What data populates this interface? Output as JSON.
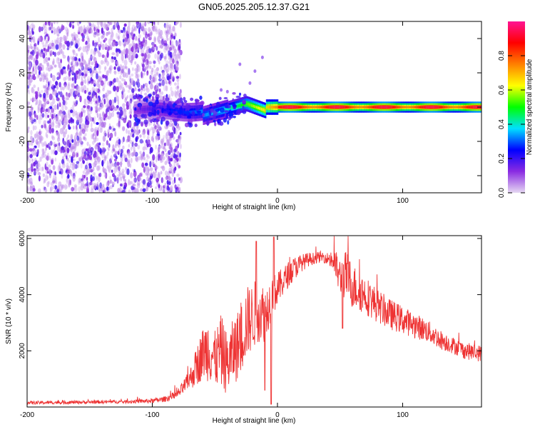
{
  "title": "GN05.2025.205.12.37.G21",
  "chart_data": [
    {
      "type": "heatmap",
      "name": "spectrogram",
      "xlabel": "Height of straight line (km)",
      "ylabel": "Frequency (Hz)",
      "xlim": [
        -200,
        163
      ],
      "ylim": [
        -50,
        50
      ],
      "x_ticks": [
        "-200",
        "-100",
        "0",
        "100"
      ],
      "y_ticks": [
        "-40",
        "-20",
        "0",
        "20",
        "40"
      ],
      "colorbar": {
        "label": "Normalized spectral amplitude",
        "range": [
          0.0,
          1.0
        ],
        "ticks": [
          "0.0",
          "0.2",
          "0.4",
          "0.6",
          "0.8"
        ],
        "colors": [
          "#e6d8f2",
          "#8a2be2",
          "#0000ff",
          "#00e0ff",
          "#00ff00",
          "#ffff00",
          "#ff8000",
          "#ff0000",
          "#ff1493"
        ]
      },
      "features": {
        "noise_region_x": [
          -200,
          -77
        ],
        "signal_band_center_hz": 0,
        "signal_onset_x": -115,
        "peak_amplitude_x_range": [
          0,
          163
        ]
      }
    },
    {
      "type": "line",
      "name": "snr",
      "xlabel": "Height of straight line (km)",
      "ylabel": "SNR (10 * v/v)",
      "xlim": [
        -200,
        163
      ],
      "ylim": [
        0,
        6100
      ],
      "x_ticks": [
        "-200",
        "-100",
        "0",
        "100"
      ],
      "y_ticks": [
        "2000",
        "4000",
        "6000"
      ],
      "series": [
        {
          "color": "#ee3333",
          "x": [
            -200,
            -180,
            -160,
            -140,
            -120,
            -100,
            -90,
            -80,
            -75,
            -70,
            -65,
            -60,
            -55,
            -50,
            -45,
            -40,
            -35,
            -30,
            -25,
            -20,
            -15,
            -10,
            -5,
            0,
            5,
            10,
            15,
            20,
            25,
            30,
            35,
            40,
            45,
            50,
            55,
            60,
            70,
            80,
            90,
            100,
            110,
            120,
            130,
            140,
            150,
            163
          ],
          "y": [
            150,
            160,
            170,
            180,
            190,
            220,
            280,
            450,
            700,
            1000,
            1400,
            1900,
            2100,
            1700,
            2000,
            1500,
            2000,
            2300,
            3000,
            3200,
            3500,
            3300,
            3900,
            4200,
            4500,
            4800,
            5000,
            5150,
            5250,
            5300,
            5350,
            5300,
            5200,
            4600,
            4700,
            4300,
            4000,
            3600,
            3300,
            3100,
            2900,
            2700,
            2400,
            2200,
            2000,
            1900
          ],
          "noise_amplitude": [
            60,
            60,
            60,
            60,
            60,
            80,
            100,
            150,
            250,
            350,
            700,
            900,
            1200,
            1000,
            1300,
            1100,
            1200,
            1300,
            1300,
            1200,
            1200,
            1000,
            800,
            600,
            500,
            450,
            400,
            300,
            250,
            200,
            200,
            200,
            500,
            700,
            900,
            800,
            700,
            600,
            550,
            500,
            450,
            400,
            350,
            300,
            300,
            300
          ]
        }
      ]
    }
  ]
}
